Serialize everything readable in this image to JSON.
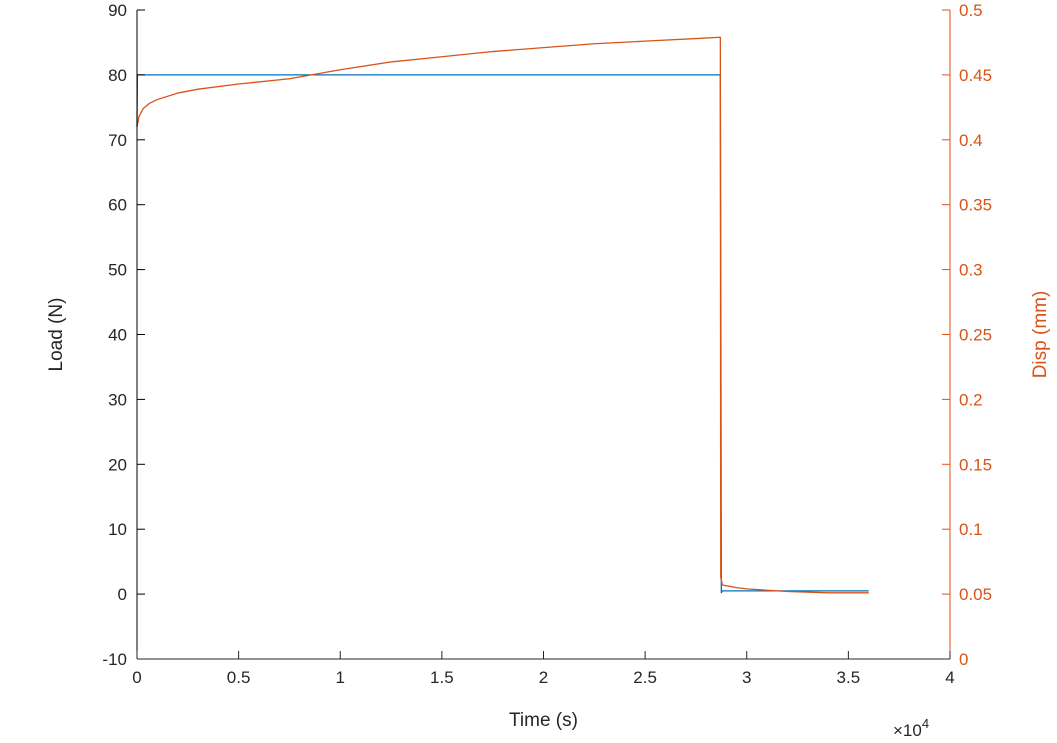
{
  "chart_data": {
    "type": "line",
    "xlabel": "Time (s)",
    "x_exponent_label": "×10",
    "x_exponent_power": "4",
    "xlim": [
      0,
      4
    ],
    "xticks": [
      "0",
      "0.5",
      "1",
      "1.5",
      "2",
      "2.5",
      "3",
      "3.5",
      "4"
    ],
    "left_axis": {
      "label": "Load (N)",
      "ylim": [
        -10,
        90
      ],
      "ticks": [
        "-10",
        "0",
        "10",
        "20",
        "30",
        "40",
        "50",
        "60",
        "70",
        "80",
        "90"
      ],
      "color": "#000000"
    },
    "right_axis": {
      "label": "Disp (mm)",
      "ylim": [
        0,
        0.5
      ],
      "ticks": [
        "0",
        "0.05",
        "0.1",
        "0.15",
        "0.2",
        "0.25",
        "0.3",
        "0.35",
        "0.4",
        "0.45",
        "0.5"
      ],
      "color": "#d95319"
    },
    "grid": false,
    "series": [
      {
        "axis": "left",
        "color": "#0072bd",
        "points": [
          [
            0,
            72
          ],
          [
            0.002,
            80
          ],
          [
            2.87,
            80
          ],
          [
            2.875,
            0.2
          ],
          [
            2.88,
            0.5
          ],
          [
            3.6,
            0.5
          ]
        ]
      },
      {
        "axis": "right",
        "color": "#d95319",
        "points": [
          [
            0,
            0.41
          ],
          [
            0.01,
            0.418
          ],
          [
            0.03,
            0.424
          ],
          [
            0.06,
            0.428
          ],
          [
            0.1,
            0.431
          ],
          [
            0.2,
            0.436
          ],
          [
            0.3,
            0.439
          ],
          [
            0.5,
            0.443
          ],
          [
            0.75,
            0.447
          ],
          [
            1.0,
            0.454
          ],
          [
            1.25,
            0.46
          ],
          [
            1.5,
            0.464
          ],
          [
            1.75,
            0.468
          ],
          [
            2.0,
            0.471
          ],
          [
            2.25,
            0.474
          ],
          [
            2.5,
            0.476
          ],
          [
            2.75,
            0.478
          ],
          [
            2.87,
            0.479
          ],
          [
            2.872,
            0.063
          ],
          [
            2.88,
            0.057
          ],
          [
            2.95,
            0.055
          ],
          [
            3.0,
            0.054
          ],
          [
            3.2,
            0.052
          ],
          [
            3.4,
            0.051
          ],
          [
            3.6,
            0.051
          ]
        ]
      }
    ]
  }
}
